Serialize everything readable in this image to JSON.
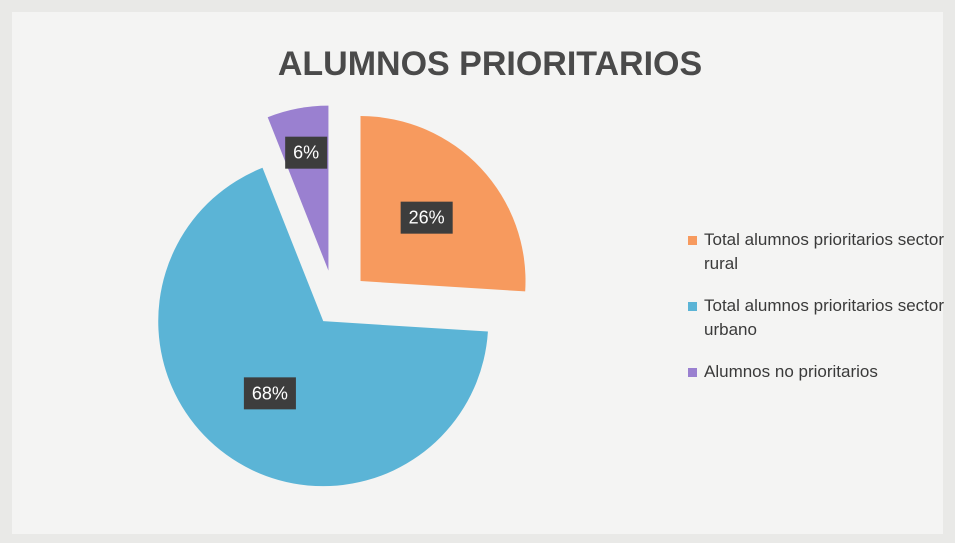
{
  "chart_data": {
    "type": "pie",
    "title": "ALUMNOS PRIORITARIOS",
    "categories": [
      "Total alumnos prioritarios sector rural",
      "Total alumnos prioritarios sector urbano",
      "Alumnos no prioritarios"
    ],
    "values": [
      26,
      68,
      6
    ],
    "value_labels": [
      "26%",
      "68%",
      "6%"
    ],
    "colors": [
      "#f79a5e",
      "#5bb4d6",
      "#9a80d0"
    ],
    "legend": "right"
  }
}
